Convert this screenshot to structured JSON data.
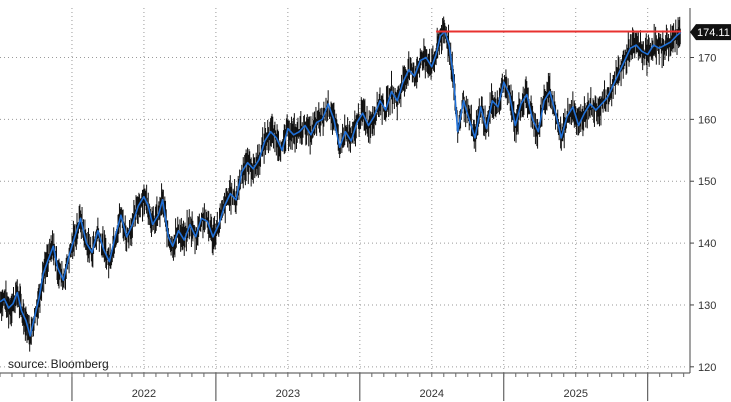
{
  "chart_data": {
    "type": "line",
    "title": "",
    "xlabel": "",
    "ylabel": "",
    "source": "source: Bloomberg",
    "last_value_label": "174.11",
    "ylim": [
      119,
      178
    ],
    "xlim": [
      2021.0,
      2025.78
    ],
    "y_ticks": [
      120,
      130,
      140,
      150,
      160,
      170
    ],
    "x_year_labels": [
      "2022",
      "2023",
      "2024",
      "2025"
    ],
    "x_year_label_positions": [
      2022.0,
      2023.0,
      2024.0,
      2025.0
    ],
    "x_year_boundaries": [
      2021.5,
      2022.5,
      2023.5,
      2024.5,
      2025.5
    ],
    "vertical_grid_x": [
      2021.5,
      2022.5,
      2023.5,
      2024.5,
      2025.5,
      2021.0,
      2022.0,
      2023.0,
      2024.0,
      2025.0
    ],
    "grid": true,
    "colors": {
      "price_line": "#1f6fd6",
      "price_wick": "#111111",
      "high_line": "#e8312f",
      "last_value_bg": "#111111",
      "grid": "#9a9a9a"
    },
    "series": [
      {
        "name": "",
        "x": [
          2021.0,
          2021.03,
          2021.06,
          2021.09,
          2021.12,
          2021.15,
          2021.18,
          2021.21,
          2021.24,
          2021.27,
          2021.3,
          2021.33,
          2021.37,
          2021.4,
          2021.44,
          2021.48,
          2021.52,
          2021.56,
          2021.6,
          2021.64,
          2021.68,
          2021.72,
          2021.76,
          2021.8,
          2021.84,
          2021.88,
          2021.92,
          2021.96,
          2022.0,
          2022.03,
          2022.06,
          2022.1,
          2022.13,
          2022.17,
          2022.2,
          2022.24,
          2022.28,
          2022.32,
          2022.36,
          2022.4,
          2022.44,
          2022.48,
          2022.52,
          2022.56,
          2022.6,
          2022.64,
          2022.68,
          2022.72,
          2022.76,
          2022.8,
          2022.84,
          2022.88,
          2022.92,
          2022.96,
          2023.0,
          2023.04,
          2023.08,
          2023.12,
          2023.16,
          2023.2,
          2023.24,
          2023.28,
          2023.32,
          2023.36,
          2023.4,
          2023.44,
          2023.48,
          2023.52,
          2023.56,
          2023.6,
          2023.64,
          2023.68,
          2023.72,
          2023.76,
          2023.8,
          2023.84,
          2023.88,
          2023.92,
          2023.96,
          2024.0,
          2024.03,
          2024.06,
          2024.09,
          2024.12,
          2024.15,
          2024.18,
          2024.22,
          2024.26,
          2024.3,
          2024.34,
          2024.38,
          2024.42,
          2024.46,
          2024.5,
          2024.54,
          2024.58,
          2024.62,
          2024.66,
          2024.7,
          2024.74,
          2024.78,
          2024.82,
          2024.86,
          2024.9,
          2024.94,
          2024.98,
          2025.02,
          2025.06,
          2025.1,
          2025.14,
          2025.18,
          2025.22,
          2025.26,
          2025.3,
          2025.34,
          2025.38,
          2025.42,
          2025.46,
          2025.5,
          2025.54,
          2025.58,
          2025.62,
          2025.66,
          2025.7,
          2025.73
        ],
        "y": [
          130.5,
          131.0,
          129.5,
          130.2,
          132.0,
          129.0,
          127.5,
          125.0,
          128.0,
          131.0,
          135.0,
          137.0,
          139.5,
          136.0,
          134.0,
          138.0,
          141.0,
          144.0,
          140.0,
          138.5,
          142.0,
          139.0,
          137.0,
          141.0,
          144.5,
          141.0,
          143.0,
          146.0,
          147.5,
          146.0,
          143.0,
          144.5,
          147.0,
          141.0,
          139.5,
          142.0,
          140.5,
          143.0,
          141.0,
          144.0,
          143.5,
          141.0,
          143.0,
          146.0,
          148.0,
          147.0,
          151.5,
          153.0,
          152.0,
          153.5,
          156.5,
          158.0,
          157.0,
          155.0,
          158.5,
          157.5,
          158.0,
          159.0,
          157.5,
          159.5,
          160.0,
          162.5,
          160.0,
          155.5,
          158.0,
          156.5,
          159.5,
          161.0,
          159.0,
          160.5,
          163.0,
          161.5,
          164.5,
          163.0,
          166.0,
          168.0,
          167.0,
          169.5,
          170.0,
          168.5,
          170.5,
          173.5,
          174.2,
          172.0,
          167.0,
          158.0,
          163.0,
          160.0,
          157.0,
          162.0,
          158.5,
          163.0,
          162.0,
          166.0,
          164.0,
          159.0,
          162.5,
          164.0,
          160.0,
          158.0,
          163.0,
          164.5,
          161.0,
          157.0,
          160.5,
          162.0,
          159.0,
          161.0,
          162.5,
          161.5,
          162.5,
          163.5,
          165.5,
          167.5,
          169.5,
          171.5,
          172.0,
          171.0,
          170.5,
          172.0,
          171.5,
          172.0,
          172.5,
          173.5,
          174.11
        ]
      }
    ],
    "annotations": [
      {
        "type": "hline",
        "y": 174.2,
        "x_from": 2024.03,
        "x_to": 2025.73
      }
    ]
  }
}
